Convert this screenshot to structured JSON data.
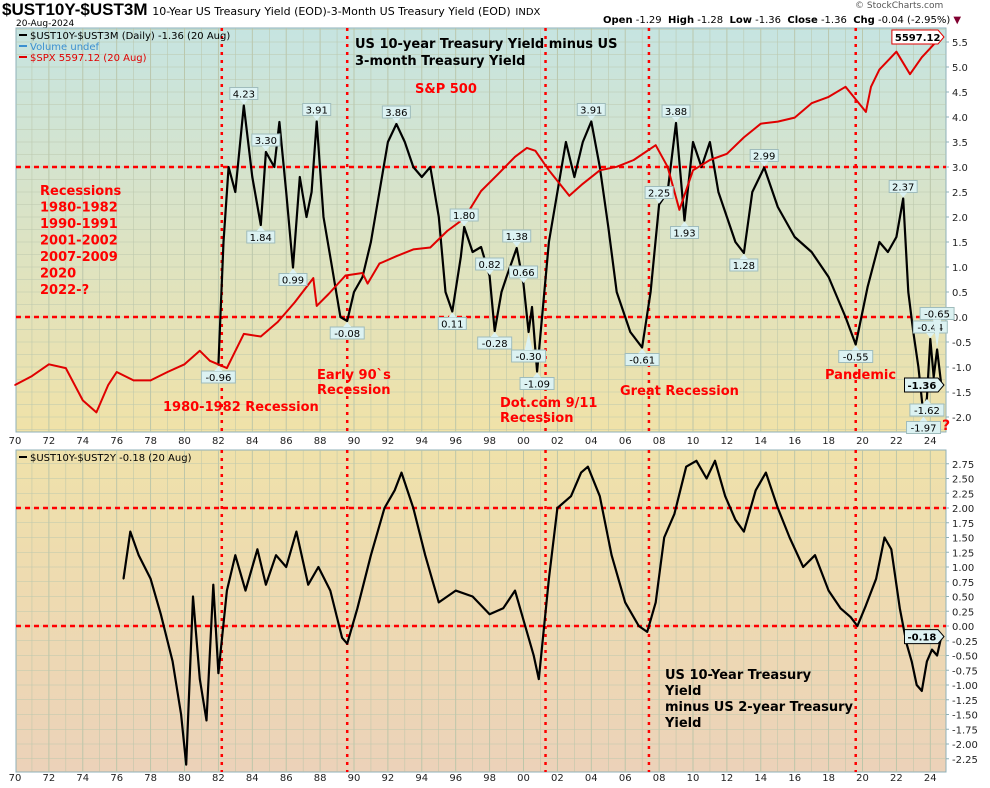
{
  "header": {
    "symbol": "$UST10Y-$UST3M",
    "description": "10-Year US Treasury Yield (EOD)-3-Month US Treasury Yield (EOD)",
    "exchange": "INDX",
    "date": "20-Aug-2024",
    "watermark": "© StockCharts.com",
    "open_label": "Open",
    "open": "-1.29",
    "high_label": "High",
    "high": "-1.28",
    "low_label": "Low",
    "low": "-1.36",
    "close_label": "Close",
    "close": "-1.36",
    "chg_label": "Chg",
    "chg": "-0.04 (-2.95%)"
  },
  "colors": {
    "spread": "#000000",
    "spx": "#e00000",
    "recession": "#ff0000",
    "annotation": "#ff0000",
    "top_bg_top": "#c6e4e1",
    "top_bg_bottom": "#f0e2a8",
    "bottom_bg_top": "#efe1aa",
    "bottom_bg_bottom": "#ecd2b9"
  },
  "chart_data": [
    {
      "type": "line",
      "title": "US 10-year Treasury Yield minus US 3-month Treasury Yield",
      "legend": [
        "$UST10Y-$UST3M (Daily) -1.36 (20 Aug)",
        "Volume undef",
        "$SPX 5597.12 (20 Aug)"
      ],
      "legend_placement": "top-left",
      "x_ticks": [
        "70",
        "72",
        "74",
        "76",
        "78",
        "80",
        "82",
        "84",
        "86",
        "88",
        "90",
        "92",
        "94",
        "96",
        "98",
        "00",
        "02",
        "04",
        "06",
        "08",
        "10",
        "12",
        "14",
        "16",
        "18",
        "20",
        "22",
        "24"
      ],
      "y_ticks": [
        "5.5",
        "5.0",
        "4.5",
        "4.0",
        "3.5",
        "3.0",
        "2.5",
        "2.0",
        "1.5",
        "1.0",
        "0.5",
        "0.0",
        "-0.5",
        "-1.0",
        "-1.5",
        "-2.0"
      ],
      "ylim": [
        -2.3,
        5.75
      ],
      "xlim": [
        1970,
        2025
      ],
      "reference_lines": {
        "horizontal": [
          3.0,
          0.0
        ],
        "vertical_years": [
          1982.2,
          1989.6,
          2001.3,
          2007.4,
          2019.6
        ]
      },
      "series": [
        {
          "name": "$UST10Y-$UST3M",
          "x": [
            1982.0,
            1982.3,
            1982.6,
            1983.0,
            1983.5,
            1984.0,
            1984.5,
            1984.8,
            1985.3,
            1985.6,
            1986.0,
            1986.4,
            1986.8,
            1987.2,
            1987.5,
            1987.8,
            1988.2,
            1988.7,
            1989.2,
            1989.6,
            1990.0,
            1990.5,
            1991.0,
            1991.5,
            1992.0,
            1992.5,
            1993.0,
            1993.5,
            1994.0,
            1994.5,
            1995.0,
            1995.4,
            1995.8,
            1996.3,
            1996.5,
            1997.0,
            1997.5,
            1998.0,
            1998.3,
            1998.7,
            1999.0,
            1999.6,
            2000.0,
            2000.3,
            2000.5,
            2000.8,
            2001.5,
            2002.0,
            2002.5,
            2003.0,
            2003.5,
            2004.0,
            2004.5,
            2005.0,
            2005.5,
            2006.3,
            2007.0,
            2007.5,
            2008.0,
            2008.5,
            2009.0,
            2009.5,
            2010.0,
            2010.5,
            2011.0,
            2011.5,
            2012.0,
            2012.5,
            2013.0,
            2013.5,
            2014.2,
            2015.0,
            2016.0,
            2017.0,
            2018.0,
            2019.0,
            2019.6,
            2020.3,
            2021.0,
            2021.5,
            2022.0,
            2022.4,
            2022.7,
            2023.0,
            2023.3,
            2023.6,
            2023.8,
            2024.0,
            2024.2,
            2024.4,
            2024.65
          ],
          "values": [
            -0.96,
            1.5,
            3.0,
            2.5,
            4.23,
            2.8,
            1.84,
            3.3,
            3.0,
            3.9,
            2.5,
            0.99,
            2.8,
            2.0,
            2.5,
            3.91,
            2.0,
            1.0,
            0.0,
            -0.08,
            0.5,
            0.8,
            1.5,
            2.5,
            3.5,
            3.86,
            3.5,
            3.0,
            2.8,
            3.0,
            2.0,
            0.5,
            0.11,
            1.2,
            1.8,
            1.3,
            1.4,
            0.82,
            -0.28,
            0.5,
            0.8,
            1.38,
            0.66,
            -0.3,
            0.2,
            -1.09,
            1.5,
            2.5,
            3.5,
            2.8,
            3.5,
            3.91,
            3.0,
            1.8,
            0.5,
            -0.3,
            -0.61,
            0.5,
            2.25,
            2.5,
            3.88,
            1.93,
            3.5,
            3.0,
            3.5,
            2.5,
            2.0,
            1.5,
            1.28,
            2.5,
            2.99,
            2.2,
            1.6,
            1.3,
            0.8,
            0.0,
            -0.55,
            0.6,
            1.5,
            1.3,
            1.6,
            2.37,
            0.5,
            -0.3,
            -1.0,
            -1.97,
            -1.62,
            -0.44,
            -1.2,
            -0.65,
            -1.36
          ]
        },
        {
          "name": "$SPX",
          "scale": "log overlay",
          "x": [
            1970,
            1971,
            1972,
            1973,
            1974,
            1974.8,
            1975.5,
            1976,
            1977,
            1978,
            1979,
            1980,
            1980.9,
            1981.5,
            1982.5,
            1983.5,
            1984.5,
            1985.5,
            1986.5,
            1987.6,
            1987.8,
            1988.5,
            1989.5,
            1990.5,
            1990.8,
            1991.5,
            1992.5,
            1993.5,
            1994.5,
            1995.5,
            1996.5,
            1997.5,
            1998.5,
            1999.5,
            2000.2,
            2000.7,
            2001.5,
            2002.7,
            2003.5,
            2004.5,
            2005.5,
            2006.5,
            2007.8,
            2008.5,
            2009.2,
            2010,
            2011,
            2012,
            2013,
            2014,
            2015,
            2016,
            2017,
            2018,
            2019,
            2020.2,
            2020.5,
            2021,
            2022,
            2022.8,
            2023.5,
            2024,
            2024.6
          ],
          "values": [
            90,
            100,
            115,
            110,
            75,
            65,
            90,
            105,
            95,
            95,
            105,
            115,
            135,
            120,
            110,
            165,
            160,
            190,
            240,
            320,
            230,
            265,
            330,
            340,
            300,
            380,
            415,
            450,
            460,
            560,
            650,
            900,
            1100,
            1350,
            1500,
            1450,
            1150,
            850,
            980,
            1150,
            1200,
            1300,
            1550,
            1200,
            720,
            1150,
            1300,
            1400,
            1700,
            2000,
            2050,
            2150,
            2550,
            2750,
            3100,
            2300,
            3100,
            3800,
            4700,
            3600,
            4400,
            4900,
            5597.12
          ]
        }
      ],
      "last_value_label": "-1.36",
      "spx_last_label": "5597.12",
      "value_callouts": [
        {
          "x": 1983.5,
          "y": 4.23,
          "text": "4.23",
          "dir": "up"
        },
        {
          "x": 1984.8,
          "y": 3.3,
          "text": "3.30",
          "dir": "up"
        },
        {
          "x": 1987.8,
          "y": 3.91,
          "text": "3.91",
          "dir": "up"
        },
        {
          "x": 1984.5,
          "y": 1.84,
          "text": "1.84",
          "dir": "down"
        },
        {
          "x": 1986.4,
          "y": 0.99,
          "text": "0.99",
          "dir": "down"
        },
        {
          "x": 1982.0,
          "y": -0.96,
          "text": "-0.96",
          "dir": "down"
        },
        {
          "x": 1989.6,
          "y": -0.08,
          "text": "-0.08",
          "dir": "down"
        },
        {
          "x": 1992.5,
          "y": 3.86,
          "text": "3.86",
          "dir": "up"
        },
        {
          "x": 1996.5,
          "y": 1.8,
          "text": "1.80",
          "dir": "up"
        },
        {
          "x": 1995.8,
          "y": 0.11,
          "text": "0.11",
          "dir": "down"
        },
        {
          "x": 1998.0,
          "y": 0.82,
          "text": "0.82",
          "dir": "up"
        },
        {
          "x": 1998.3,
          "y": -0.28,
          "text": "-0.28",
          "dir": "down"
        },
        {
          "x": 1999.6,
          "y": 1.38,
          "text": "1.38",
          "dir": "up"
        },
        {
          "x": 2000.0,
          "y": 0.66,
          "text": "0.66",
          "dir": "up"
        },
        {
          "x": 2000.3,
          "y": -0.3,
          "text": "-0.30",
          "dir": "down"
        },
        {
          "x": 2000.8,
          "y": -1.09,
          "text": "-1.09",
          "dir": "down"
        },
        {
          "x": 2004.0,
          "y": 3.91,
          "text": "3.91",
          "dir": "up"
        },
        {
          "x": 2009.0,
          "y": 3.88,
          "text": "3.88",
          "dir": "up"
        },
        {
          "x": 2008.0,
          "y": 2.25,
          "text": "2.25",
          "dir": "up"
        },
        {
          "x": 2009.5,
          "y": 1.93,
          "text": "1.93",
          "dir": "down"
        },
        {
          "x": 2007.0,
          "y": -0.61,
          "text": "-0.61",
          "dir": "down"
        },
        {
          "x": 2014.2,
          "y": 2.99,
          "text": "2.99",
          "dir": "up"
        },
        {
          "x": 2013.0,
          "y": 1.28,
          "text": "1.28",
          "dir": "down"
        },
        {
          "x": 2019.6,
          "y": -0.55,
          "text": "-0.55",
          "dir": "down"
        },
        {
          "x": 2022.4,
          "y": 2.37,
          "text": "2.37",
          "dir": "up"
        },
        {
          "x": 2024.0,
          "y": -0.44,
          "text": "-0.44",
          "dir": "up"
        },
        {
          "x": 2024.4,
          "y": -0.65,
          "text": "-0.65",
          "dir": "up"
        },
        {
          "x": 2023.8,
          "y": -1.62,
          "text": "-1.62",
          "dir": "down"
        },
        {
          "x": 2023.6,
          "y": -1.97,
          "text": "-1.97",
          "dir": "down"
        }
      ],
      "annotations": {
        "title_lines": [
          "US 10-year Treasury Yield minus US",
          "3-month Treasury Yield"
        ],
        "spx": "S&P 500",
        "recessions": [
          "Recessions",
          "1980-1982",
          "1990-1991",
          "2001-2002",
          "2007-2009",
          "2020",
          "2022-?"
        ],
        "r1980": "1980-1982 Recession",
        "r1990": [
          "Early 90`s",
          "Recession"
        ],
        "r2001": [
          "Dot.com 9/11",
          "Recession"
        ],
        "r2008": "Great Recession",
        "r2020": "Pandemic",
        "question": "?"
      }
    },
    {
      "type": "line",
      "legend": [
        "$UST10Y-$UST2Y -0.18 (20 Aug)"
      ],
      "legend_placement": "top-left",
      "x_ticks": [
        "70",
        "72",
        "74",
        "76",
        "78",
        "80",
        "82",
        "84",
        "86",
        "88",
        "90",
        "92",
        "94",
        "96",
        "98",
        "00",
        "02",
        "04",
        "06",
        "08",
        "10",
        "12",
        "14",
        "16",
        "18",
        "20",
        "22",
        "24"
      ],
      "y_ticks": [
        "2.75",
        "2.50",
        "2.25",
        "2.00",
        "1.75",
        "1.50",
        "1.25",
        "1.00",
        "0.75",
        "0.50",
        "0.25",
        "0.00",
        "-0.25",
        "-0.50",
        "-0.75",
        "-1.00",
        "-1.25",
        "-1.50",
        "-1.75",
        "-2.00",
        "-2.25"
      ],
      "ylim": [
        -2.48,
        2.95
      ],
      "xlim": [
        1970,
        2025
      ],
      "reference_lines": {
        "horizontal": [
          2.0,
          0.0
        ],
        "vertical_years": [
          1982.2,
          1989.6,
          2001.3,
          2007.4,
          2019.6
        ]
      },
      "series": [
        {
          "name": "$UST10Y-$UST2Y",
          "x": [
            1976.4,
            1976.8,
            1977.3,
            1978.0,
            1978.6,
            1979.3,
            1979.8,
            1980.1,
            1980.5,
            1980.9,
            1981.3,
            1981.7,
            1982.0,
            1982.5,
            1983.0,
            1983.6,
            1984.3,
            1984.8,
            1985.4,
            1986.0,
            1986.6,
            1987.3,
            1987.9,
            1988.6,
            1989.3,
            1989.6,
            1990.2,
            1991.0,
            1991.8,
            1992.4,
            1992.8,
            1993.5,
            1994.2,
            1995.0,
            1996.0,
            1997.0,
            1998.0,
            1998.8,
            1999.5,
            2000.1,
            2000.6,
            2000.9,
            2001.5,
            2002.0,
            2002.8,
            2003.4,
            2003.8,
            2004.5,
            2005.2,
            2006.0,
            2006.8,
            2007.3,
            2007.8,
            2008.3,
            2008.9,
            2009.6,
            2010.2,
            2010.8,
            2011.3,
            2011.9,
            2012.5,
            2013.0,
            2013.7,
            2014.3,
            2015.0,
            2015.7,
            2016.5,
            2017.2,
            2018.0,
            2018.7,
            2019.3,
            2019.7,
            2020.2,
            2020.8,
            2021.3,
            2021.7,
            2022.2,
            2022.6,
            2022.9,
            2023.2,
            2023.5,
            2023.8,
            2024.1,
            2024.4,
            2024.65
          ],
          "values": [
            0.8,
            1.6,
            1.2,
            0.8,
            0.2,
            -0.6,
            -1.5,
            -2.35,
            0.5,
            -0.9,
            -1.6,
            0.7,
            -0.8,
            0.6,
            1.2,
            0.6,
            1.3,
            0.7,
            1.2,
            1.0,
            1.6,
            0.7,
            1.0,
            0.6,
            -0.2,
            -0.3,
            0.3,
            1.2,
            2.0,
            2.3,
            2.6,
            2.0,
            1.2,
            0.4,
            0.6,
            0.5,
            0.2,
            0.3,
            0.6,
            0.0,
            -0.5,
            -0.9,
            0.8,
            2.0,
            2.2,
            2.6,
            2.7,
            2.2,
            1.2,
            0.4,
            0.0,
            -0.1,
            0.4,
            1.5,
            1.9,
            2.7,
            2.8,
            2.5,
            2.8,
            2.2,
            1.8,
            1.6,
            2.3,
            2.6,
            2.0,
            1.5,
            1.0,
            1.2,
            0.6,
            0.3,
            0.15,
            0.0,
            0.35,
            0.8,
            1.5,
            1.3,
            0.3,
            -0.3,
            -0.6,
            -1.0,
            -1.1,
            -0.6,
            -0.4,
            -0.5,
            -0.18
          ]
        }
      ],
      "last_value_label": "-0.18",
      "annotations": {
        "text_lines": [
          "US 10-Year Treasury",
          "Yield",
          "minus US 2-year Treasury",
          "Yield"
        ]
      }
    }
  ]
}
